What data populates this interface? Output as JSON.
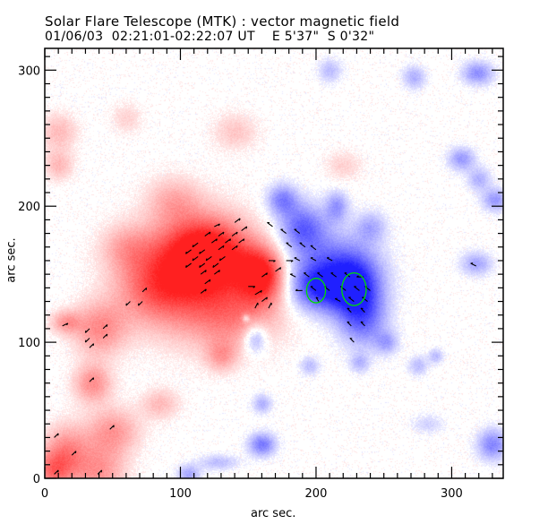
{
  "chart_data": {
    "type": "heatmap",
    "title": "Solar Flare Telescope (MTK) : vector magnetic field",
    "subtitle": "01/06/03  02:21:01-02:22:07 UT    E 5'37\"  S 0'32\"",
    "xlabel": "arc sec.",
    "ylabel": "arc sec.",
    "xlim": [
      0,
      338
    ],
    "ylim": [
      0,
      316
    ],
    "x_ticks": [
      0,
      100,
      200,
      300
    ],
    "y_ticks": [
      0,
      100,
      200,
      300
    ],
    "x_minor_step": 10,
    "y_minor_step": 10,
    "colors": {
      "positive": "#ff2020",
      "negative": "#2020ff",
      "arrow": "#000000",
      "contour": "#00dd00"
    },
    "positive_polarity_blobs": [
      {
        "x": 120,
        "y": 165,
        "sx": 22,
        "sy": 18,
        "amp": 1.0
      },
      {
        "x": 160,
        "y": 150,
        "sx": 12,
        "sy": 14,
        "amp": 0.95
      },
      {
        "x": 105,
        "y": 150,
        "sx": 30,
        "sy": 30,
        "amp": 0.55
      },
      {
        "x": 140,
        "y": 120,
        "sx": 25,
        "sy": 18,
        "amp": 0.45
      },
      {
        "x": 80,
        "y": 140,
        "sx": 20,
        "sy": 18,
        "amp": 0.45
      },
      {
        "x": 40,
        "y": 110,
        "sx": 14,
        "sy": 14,
        "amp": 0.5
      },
      {
        "x": 15,
        "y": 115,
        "sx": 8,
        "sy": 6,
        "amp": 0.4
      },
      {
        "x": 35,
        "y": 70,
        "sx": 10,
        "sy": 10,
        "amp": 0.5
      },
      {
        "x": 50,
        "y": 35,
        "sx": 14,
        "sy": 12,
        "amp": 0.45
      },
      {
        "x": 15,
        "y": 20,
        "sx": 12,
        "sy": 14,
        "amp": 0.5
      },
      {
        "x": 40,
        "y": 5,
        "sx": 14,
        "sy": 14,
        "amp": 0.45
      },
      {
        "x": 5,
        "y": 5,
        "sx": 10,
        "sy": 10,
        "amp": 0.5
      },
      {
        "x": 85,
        "y": 55,
        "sx": 10,
        "sy": 8,
        "amp": 0.3
      },
      {
        "x": 130,
        "y": 90,
        "sx": 8,
        "sy": 8,
        "amp": 0.35
      },
      {
        "x": 60,
        "y": 170,
        "sx": 14,
        "sy": 12,
        "amp": 0.3
      },
      {
        "x": 10,
        "y": 255,
        "sx": 10,
        "sy": 10,
        "amp": 0.3
      },
      {
        "x": 10,
        "y": 230,
        "sx": 8,
        "sy": 8,
        "amp": 0.3
      },
      {
        "x": 95,
        "y": 205,
        "sx": 14,
        "sy": 12,
        "amp": 0.3
      },
      {
        "x": 220,
        "y": 230,
        "sx": 10,
        "sy": 8,
        "amp": 0.2
      },
      {
        "x": 140,
        "y": 255,
        "sx": 12,
        "sy": 10,
        "amp": 0.25
      },
      {
        "x": 60,
        "y": 265,
        "sx": 8,
        "sy": 8,
        "amp": 0.2
      }
    ],
    "negative_polarity_blobs": [
      {
        "x": 200,
        "y": 140,
        "sx": 14,
        "sy": 12,
        "amp": 0.75
      },
      {
        "x": 228,
        "y": 140,
        "sx": 14,
        "sy": 16,
        "amp": 1.0
      },
      {
        "x": 190,
        "y": 185,
        "sx": 12,
        "sy": 12,
        "amp": 0.65
      },
      {
        "x": 210,
        "y": 160,
        "sx": 22,
        "sy": 16,
        "amp": 0.5
      },
      {
        "x": 235,
        "y": 115,
        "sx": 12,
        "sy": 14,
        "amp": 0.5
      },
      {
        "x": 175,
        "y": 205,
        "sx": 8,
        "sy": 8,
        "amp": 0.55
      },
      {
        "x": 215,
        "y": 200,
        "sx": 6,
        "sy": 8,
        "amp": 0.45
      },
      {
        "x": 240,
        "y": 185,
        "sx": 8,
        "sy": 8,
        "amp": 0.35
      },
      {
        "x": 252,
        "y": 100,
        "sx": 6,
        "sy": 6,
        "amp": 0.35
      },
      {
        "x": 318,
        "y": 158,
        "sx": 8,
        "sy": 6,
        "amp": 0.4
      },
      {
        "x": 210,
        "y": 300,
        "sx": 6,
        "sy": 6,
        "amp": 0.3
      },
      {
        "x": 272,
        "y": 295,
        "sx": 6,
        "sy": 6,
        "amp": 0.35
      },
      {
        "x": 319,
        "y": 298,
        "sx": 8,
        "sy": 6,
        "amp": 0.5
      },
      {
        "x": 307,
        "y": 235,
        "sx": 7,
        "sy": 6,
        "amp": 0.45
      },
      {
        "x": 320,
        "y": 220,
        "sx": 6,
        "sy": 6,
        "amp": 0.35
      },
      {
        "x": 332,
        "y": 205,
        "sx": 7,
        "sy": 6,
        "amp": 0.45
      },
      {
        "x": 195,
        "y": 83,
        "sx": 5,
        "sy": 5,
        "amp": 0.3
      },
      {
        "x": 232,
        "y": 85,
        "sx": 5,
        "sy": 5,
        "amp": 0.3
      },
      {
        "x": 275,
        "y": 83,
        "sx": 5,
        "sy": 5,
        "amp": 0.3
      },
      {
        "x": 288,
        "y": 90,
        "sx": 4,
        "sy": 4,
        "amp": 0.3
      },
      {
        "x": 155,
        "y": 103,
        "sx": 6,
        "sy": 8,
        "amp": 0.5
      },
      {
        "x": 160,
        "y": 55,
        "sx": 5,
        "sy": 5,
        "amp": 0.35
      },
      {
        "x": 160,
        "y": 25,
        "sx": 7,
        "sy": 6,
        "amp": 0.6
      },
      {
        "x": 330,
        "y": 25,
        "sx": 8,
        "sy": 8,
        "amp": 0.55
      },
      {
        "x": 106,
        "y": 3,
        "sx": 6,
        "sy": 5,
        "amp": 0.4
      },
      {
        "x": 128,
        "y": 12,
        "sx": 10,
        "sy": 4,
        "amp": 0.3
      },
      {
        "x": 282,
        "y": 40,
        "sx": 8,
        "sy": 5,
        "amp": 0.2
      },
      {
        "x": 148,
        "y": 118,
        "sx": 2,
        "sy": 2,
        "amp": 0.4
      }
    ],
    "vectors": [
      {
        "x": 108,
        "y": 158,
        "dx": -4,
        "dy": -3
      },
      {
        "x": 118,
        "y": 158,
        "dx": -4,
        "dy": -3
      },
      {
        "x": 128,
        "y": 158,
        "dx": -4,
        "dy": -3
      },
      {
        "x": 113,
        "y": 163,
        "dx": -4,
        "dy": -3
      },
      {
        "x": 123,
        "y": 163,
        "dx": -4,
        "dy": -3
      },
      {
        "x": 133,
        "y": 163,
        "dx": -4,
        "dy": -3
      },
      {
        "x": 108,
        "y": 168,
        "dx": -4,
        "dy": -3
      },
      {
        "x": 118,
        "y": 168,
        "dx": -4,
        "dy": -3
      },
      {
        "x": 128,
        "y": 168,
        "dx": 4,
        "dy": 3
      },
      {
        "x": 138,
        "y": 168,
        "dx": 4,
        "dy": 3
      },
      {
        "x": 113,
        "y": 173,
        "dx": -4,
        "dy": -3
      },
      {
        "x": 123,
        "y": 173,
        "dx": 4,
        "dy": 3
      },
      {
        "x": 133,
        "y": 173,
        "dx": 4,
        "dy": 3
      },
      {
        "x": 143,
        "y": 173,
        "dx": 4,
        "dy": 3
      },
      {
        "x": 118,
        "y": 178,
        "dx": 4,
        "dy": 3
      },
      {
        "x": 128,
        "y": 178,
        "dx": 4,
        "dy": 3
      },
      {
        "x": 138,
        "y": 178,
        "dx": 4,
        "dy": 3
      },
      {
        "x": 145,
        "y": 182,
        "dx": 4,
        "dy": 3
      },
      {
        "x": 125,
        "y": 185,
        "dx": 4,
        "dy": 2
      },
      {
        "x": 140,
        "y": 188,
        "dx": 4,
        "dy": 3
      },
      {
        "x": 115,
        "y": 150,
        "dx": 4,
        "dy": 3
      },
      {
        "x": 125,
        "y": 150,
        "dx": 4,
        "dy": 3
      },
      {
        "x": 118,
        "y": 143,
        "dx": 4,
        "dy": 3
      },
      {
        "x": 115,
        "y": 136,
        "dx": 4,
        "dy": 3
      },
      {
        "x": 150,
        "y": 141,
        "dx": 5,
        "dy": 0
      },
      {
        "x": 155,
        "y": 135,
        "dx": 5,
        "dy": 3
      },
      {
        "x": 160,
        "y": 130,
        "dx": 4,
        "dy": 3
      },
      {
        "x": 155,
        "y": 125,
        "dx": 2,
        "dy": 4
      },
      {
        "x": 165,
        "y": 125,
        "dx": 2,
        "dy": 4
      },
      {
        "x": 160,
        "y": 148,
        "dx": 4,
        "dy": 3
      },
      {
        "x": 170,
        "y": 152,
        "dx": 4,
        "dy": 3
      },
      {
        "x": 165,
        "y": 160,
        "dx": 5,
        "dy": 0
      },
      {
        "x": 178,
        "y": 160,
        "dx": 5,
        "dy": 0
      },
      {
        "x": 168,
        "y": 185,
        "dx": -4,
        "dy": 3
      },
      {
        "x": 178,
        "y": 180,
        "dx": -4,
        "dy": 3
      },
      {
        "x": 188,
        "y": 180,
        "dx": -4,
        "dy": 3
      },
      {
        "x": 182,
        "y": 170,
        "dx": -4,
        "dy": 3
      },
      {
        "x": 192,
        "y": 170,
        "dx": -4,
        "dy": 3
      },
      {
        "x": 200,
        "y": 168,
        "dx": -4,
        "dy": 3
      },
      {
        "x": 188,
        "y": 160,
        "dx": -4,
        "dy": 2
      },
      {
        "x": 200,
        "y": 160,
        "dx": -4,
        "dy": 2
      },
      {
        "x": 212,
        "y": 160,
        "dx": -4,
        "dy": 2
      },
      {
        "x": 185,
        "y": 148,
        "dx": -4,
        "dy": 2
      },
      {
        "x": 195,
        "y": 148,
        "dx": -4,
        "dy": 3
      },
      {
        "x": 205,
        "y": 148,
        "dx": -4,
        "dy": 3
      },
      {
        "x": 215,
        "y": 148,
        "dx": -4,
        "dy": 3
      },
      {
        "x": 225,
        "y": 148,
        "dx": -4,
        "dy": 3
      },
      {
        "x": 235,
        "y": 148,
        "dx": -5,
        "dy": 0
      },
      {
        "x": 190,
        "y": 138,
        "dx": -5,
        "dy": 0
      },
      {
        "x": 200,
        "y": 138,
        "dx": -4,
        "dy": 3
      },
      {
        "x": 210,
        "y": 138,
        "dx": -4,
        "dy": 3
      },
      {
        "x": 222,
        "y": 138,
        "dx": -4,
        "dy": 3
      },
      {
        "x": 232,
        "y": 138,
        "dx": -4,
        "dy": 3
      },
      {
        "x": 240,
        "y": 138,
        "dx": -4,
        "dy": 3
      },
      {
        "x": 202,
        "y": 130,
        "dx": -2,
        "dy": 3
      },
      {
        "x": 218,
        "y": 130,
        "dx": -4,
        "dy": 2
      },
      {
        "x": 228,
        "y": 130,
        "dx": -4,
        "dy": 3
      },
      {
        "x": 238,
        "y": 130,
        "dx": -4,
        "dy": 3
      },
      {
        "x": 226,
        "y": 122,
        "dx": -3,
        "dy": 3
      },
      {
        "x": 236,
        "y": 122,
        "dx": -3,
        "dy": 3
      },
      {
        "x": 226,
        "y": 112,
        "dx": -3,
        "dy": 3
      },
      {
        "x": 236,
        "y": 112,
        "dx": -3,
        "dy": 3
      },
      {
        "x": 228,
        "y": 100,
        "dx": -3,
        "dy": 3
      },
      {
        "x": 318,
        "y": 156,
        "dx": -4,
        "dy": 2
      },
      {
        "x": 63,
        "y": 130,
        "dx": -3,
        "dy": -3
      },
      {
        "x": 72,
        "y": 130,
        "dx": -3,
        "dy": -3
      },
      {
        "x": 72,
        "y": 137,
        "dx": 3,
        "dy": 3
      },
      {
        "x": 13,
        "y": 112,
        "dx": 4,
        "dy": 2
      },
      {
        "x": 33,
        "y": 110,
        "dx": -3,
        "dy": -3
      },
      {
        "x": 43,
        "y": 110,
        "dx": 3,
        "dy": 3
      },
      {
        "x": 33,
        "y": 103,
        "dx": -3,
        "dy": -3
      },
      {
        "x": 43,
        "y": 103,
        "dx": 3,
        "dy": 3
      },
      {
        "x": 33,
        "y": 96,
        "dx": 3,
        "dy": 3
      },
      {
        "x": 33,
        "y": 71,
        "dx": 3,
        "dy": 3
      },
      {
        "x": 48,
        "y": 36,
        "dx": 3,
        "dy": 3
      },
      {
        "x": 7,
        "y": 30,
        "dx": 3,
        "dy": 3
      },
      {
        "x": 20,
        "y": 17,
        "dx": 3,
        "dy": 3
      },
      {
        "x": 7,
        "y": 3,
        "dx": 3,
        "dy": 3
      },
      {
        "x": 39,
        "y": 3,
        "dx": 3,
        "dy": 3
      }
    ],
    "contours": [
      {
        "x": 200,
        "y": 138,
        "rx": 7,
        "ry": 9
      },
      {
        "x": 228,
        "y": 139,
        "rx": 9,
        "ry": 12
      }
    ]
  }
}
